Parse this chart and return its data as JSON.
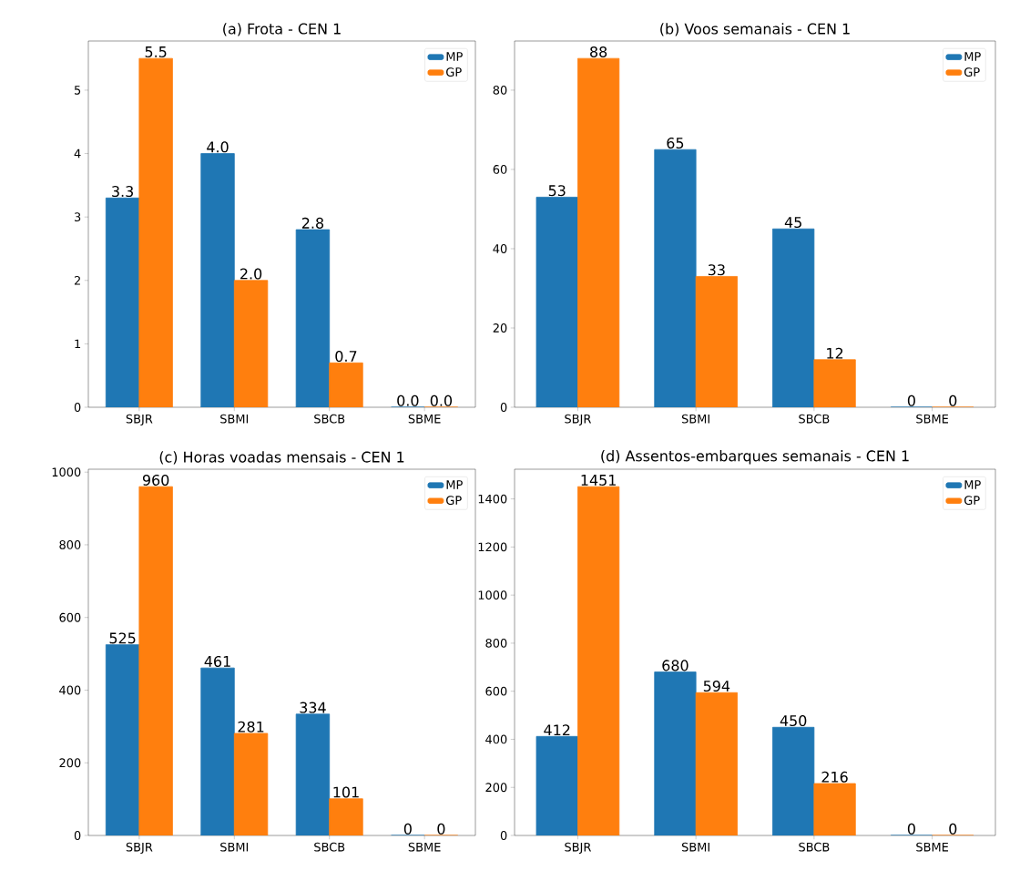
{
  "chart_data": [
    {
      "type": "bar",
      "title": "(a) Frota - CEN 1",
      "categories": [
        "SBJR",
        "SBMI",
        "SBCB",
        "SBME"
      ],
      "series": [
        {
          "name": "MP",
          "color": "#1f77b4",
          "values": [
            3.3,
            4.0,
            2.8,
            0.0
          ],
          "value_labels": [
            "3.3",
            "4.0",
            "2.8",
            "0.0"
          ]
        },
        {
          "name": "GP",
          "color": "#ff7f0e",
          "values": [
            5.5,
            2.0,
            0.7,
            0.0
          ],
          "value_labels": [
            "5.5",
            "2.0",
            "0.7",
            "0.0"
          ]
        }
      ],
      "ylim": [
        0,
        5.775
      ],
      "yticks": [
        0,
        1,
        2,
        3,
        4,
        5
      ],
      "legend": "top right"
    },
    {
      "type": "bar",
      "title": "(b) Voos semanais - CEN 1",
      "categories": [
        "SBJR",
        "SBMI",
        "SBCB",
        "SBME"
      ],
      "series": [
        {
          "name": "MP",
          "color": "#1f77b4",
          "values": [
            53,
            65,
            45,
            0
          ]
        },
        {
          "name": "GP",
          "color": "#ff7f0e",
          "values": [
            88,
            33,
            12,
            0
          ]
        }
      ],
      "ylim": [
        0,
        92.4
      ],
      "yticks": [
        0,
        20,
        40,
        60,
        80
      ],
      "legend": "top right",
      "data_labels": true
    },
    {
      "type": "bar",
      "title": "(c) Horas voadas mensais - CEN 1",
      "categories": [
        "SBJR",
        "SBMI",
        "SBCB",
        "SBME"
      ],
      "series": [
        {
          "name": "MP",
          "color": "#1f77b4",
          "values": [
            525,
            461,
            334,
            0
          ]
        },
        {
          "name": "GP",
          "color": "#ff7f0e",
          "values": [
            960,
            281,
            101,
            0
          ]
        }
      ],
      "ylim": [
        0,
        1008
      ],
      "yticks": [
        0,
        200,
        400,
        600,
        800,
        1000
      ],
      "legend": "top right",
      "data_labels": true
    },
    {
      "type": "bar",
      "title": "(d) Assentos-embarques semanais - CEN 1",
      "categories": [
        "SBJR",
        "SBMI",
        "SBCB",
        "SBME"
      ],
      "series": [
        {
          "name": "MP",
          "color": "#1f77b4",
          "values": [
            412,
            680,
            450,
            0
          ]
        },
        {
          "name": "GP",
          "color": "#ff7f0e",
          "values": [
            1451,
            594,
            216,
            0
          ]
        }
      ],
      "ylim": [
        0,
        1523.55
      ],
      "yticks": [
        0,
        200,
        400,
        600,
        800,
        1000,
        1200,
        1400
      ],
      "legend": "top right",
      "data_labels": true
    }
  ]
}
